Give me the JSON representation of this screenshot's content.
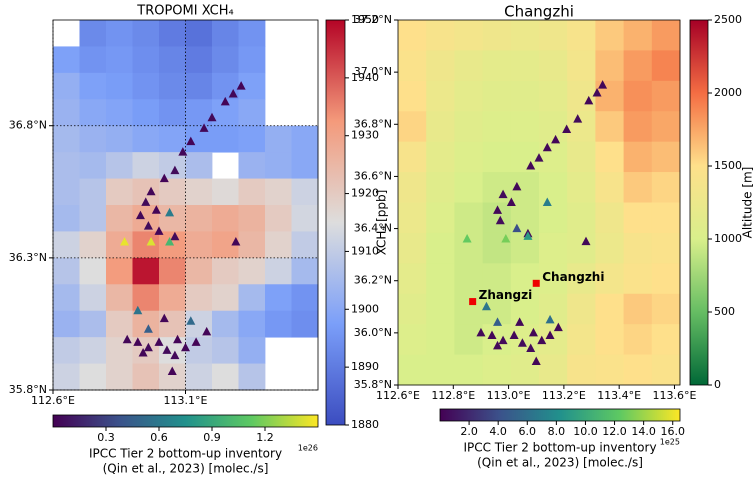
{
  "chart_data": [
    {
      "type": "heatmap",
      "title": "TROPOMI XCH₄",
      "xlim": [
        112.6,
        113.6
      ],
      "ylim": [
        35.8,
        37.2
      ],
      "xticks": [
        {
          "value": 112.6,
          "label": "112.6°E"
        },
        {
          "value": 113.1,
          "label": "113.1°E"
        }
      ],
      "yticks": [
        {
          "value": 35.8,
          "label": "35.8°N"
        },
        {
          "value": 36.3,
          "label": "36.3°N"
        },
        {
          "value": 36.8,
          "label": "36.8°N"
        }
      ],
      "grid": true,
      "cells": {
        "colormap": "coolwarm",
        "values": [
          [
            null,
            1893,
            1895,
            1893,
            1890,
            1888,
            1892,
            1895,
            null,
            null
          ],
          [
            1898,
            1895,
            1896,
            1894,
            1892,
            1890,
            1893,
            1896,
            null,
            null
          ],
          [
            1902,
            1898,
            1897,
            1895,
            1893,
            1892,
            1895,
            1898,
            null,
            null
          ],
          [
            1903,
            1900,
            1899,
            1897,
            1895,
            1896,
            1898,
            1900,
            null,
            null
          ],
          [
            1905,
            1903,
            1902,
            1900,
            1899,
            1897,
            1897,
            1898,
            1902,
            1900
          ],
          [
            1906,
            1905,
            1908,
            1912,
            1910,
            1906,
            null,
            1903,
            1902,
            1900
          ],
          [
            1906,
            1908,
            1920,
            1922,
            1920,
            1918,
            1916,
            1920,
            1918,
            1912
          ],
          [
            1905,
            1908,
            1925,
            1928,
            1925,
            1926,
            1928,
            1926,
            1920,
            1913
          ],
          [
            1912,
            1918,
            1928,
            1935,
            1932,
            1928,
            1930,
            1925,
            1918,
            1910
          ],
          [
            1908,
            1915,
            1932,
            1948,
            1935,
            1925,
            1920,
            1918,
            1912,
            1905
          ],
          [
            1905,
            1912,
            1925,
            1935,
            1928,
            1920,
            1918,
            1905,
            1898,
            1895
          ],
          [
            1903,
            1906,
            1920,
            1926,
            1922,
            1912,
            1905,
            1900,
            1896,
            1894
          ],
          [
            1910,
            1912,
            1918,
            1920,
            1915,
            1910,
            1908,
            1902,
            null,
            null
          ],
          [
            1912,
            1915,
            1918,
            1922,
            1918,
            1912,
            1915,
            1908,
            null,
            null
          ]
        ]
      },
      "colorbar": {
        "label": "XCH₄ [ppb]",
        "lim": [
          1880,
          1950
        ],
        "ticks": [
          1880,
          1890,
          1900,
          1910,
          1920,
          1930,
          1940,
          1950
        ]
      },
      "sources": {
        "colormap": "viridis",
        "lon": [
          113.31,
          113.28,
          113.25,
          113.2,
          113.17,
          113.12,
          113.09,
          113.06,
          113.02,
          112.97,
          112.95,
          112.99,
          112.93,
          113.04,
          112.96,
          113.0,
          113.06,
          112.87,
          112.97,
          113.04,
          113.29,
          112.92,
          113.12,
          112.96,
          112.88,
          112.92,
          112.96,
          113.0,
          113.03,
          113.07,
          113.1,
          113.14,
          112.94,
          113.06,
          113.05,
          113.02,
          113.18
        ],
        "lat": [
          36.95,
          36.92,
          36.89,
          36.83,
          36.79,
          36.74,
          36.7,
          36.63,
          36.6,
          36.55,
          36.51,
          36.48,
          36.46,
          36.47,
          36.42,
          36.4,
          36.38,
          36.36,
          36.36,
          36.36,
          36.36,
          36.1,
          36.06,
          36.03,
          35.99,
          35.98,
          35.96,
          35.98,
          35.95,
          35.99,
          35.96,
          35.98,
          35.94,
          35.93,
          35.87,
          36.07,
          36.02
        ],
        "values": [
          0.02,
          0.03,
          0.02,
          0.04,
          0.03,
          0.02,
          0.03,
          0.05,
          0.02,
          0.03,
          0.04,
          0.02,
          0.03,
          0.62,
          0.05,
          0.03,
          0.04,
          1.45,
          1.42,
          1.0,
          0.03,
          0.58,
          0.52,
          0.45,
          0.03,
          0.02,
          0.04,
          0.03,
          0.05,
          0.02,
          0.03,
          0.02,
          0.03,
          0.04,
          0.02,
          0.03,
          0.02
        ]
      },
      "sources_colorbar": {
        "label_lines": [
          "IPCC Tier 2 bottom-up inventory",
          "(Qin et al., 2023) [molec./s]"
        ],
        "lim": [
          0,
          1.5
        ],
        "ticks": [
          0.3,
          0.6,
          0.9,
          1.2
        ],
        "offset": "1e26"
      }
    },
    {
      "type": "heatmap",
      "title": "Changzhi",
      "xlim": [
        112.6,
        113.62
      ],
      "ylim": [
        35.8,
        37.2
      ],
      "xticks": [
        {
          "value": 112.6,
          "label": "112.6°E"
        },
        {
          "value": 112.8,
          "label": "112.8°E"
        },
        {
          "value": 113.0,
          "label": "113.0°E"
        },
        {
          "value": 113.2,
          "label": "113.2°E"
        },
        {
          "value": 113.4,
          "label": "113.4°E"
        },
        {
          "value": 113.6,
          "label": "113.6°E"
        }
      ],
      "yticks": [
        {
          "value": 35.8,
          "label": "35.8°N"
        },
        {
          "value": 36.0,
          "label": "36.0°N"
        },
        {
          "value": 36.2,
          "label": "36.2°N"
        },
        {
          "value": 36.4,
          "label": "36.4°N"
        },
        {
          "value": 36.6,
          "label": "36.6°N"
        },
        {
          "value": 36.8,
          "label": "36.8°N"
        },
        {
          "value": 37.0,
          "label": "37.0°N"
        },
        {
          "value": 37.2,
          "label": "37.2°N"
        }
      ],
      "grid": false,
      "cells": {
        "colormap": "RdYlGn_r",
        "values": [
          [
            1500,
            1400,
            1350,
            1300,
            1250,
            1300,
            1400,
            1600,
            1700,
            1800
          ],
          [
            1450,
            1300,
            1200,
            1150,
            1150,
            1200,
            1350,
            1650,
            1800,
            1900
          ],
          [
            1500,
            1250,
            1150,
            1100,
            1100,
            1150,
            1300,
            1700,
            1850,
            1800
          ],
          [
            1550,
            1200,
            1100,
            1050,
            1050,
            1100,
            1250,
            1600,
            1800,
            1750
          ],
          [
            1400,
            1150,
            1050,
            1000,
            1000,
            1050,
            1200,
            1500,
            1700,
            1650
          ],
          [
            1300,
            1100,
            1000,
            950,
            950,
            1000,
            1150,
            1400,
            1600,
            1550
          ],
          [
            1250,
            1050,
            950,
            900,
            950,
            1000,
            1100,
            1300,
            1500,
            1500
          ],
          [
            1200,
            1000,
            950,
            900,
            950,
            1050,
            1100,
            1250,
            1400,
            1450
          ],
          [
            1150,
            1000,
            950,
            950,
            1000,
            1050,
            1200,
            1350,
            1450,
            1500
          ],
          [
            1100,
            1000,
            950,
            950,
            1000,
            1100,
            1300,
            1500,
            1600,
            1550
          ],
          [
            1050,
            1000,
            950,
            1000,
            1050,
            1150,
            1350,
            1500,
            1550,
            1500
          ],
          [
            1000,
            1000,
            1000,
            1050,
            1100,
            1200,
            1400,
            1450,
            1500,
            1450
          ]
        ]
      },
      "colorbar": {
        "label": "Altitude [m]",
        "lim": [
          0,
          2500
        ],
        "ticks": [
          0,
          500,
          1000,
          1500,
          2000,
          2500
        ]
      },
      "sources": {
        "colormap": "viridis",
        "lon": [
          113.34,
          113.32,
          113.29,
          113.25,
          113.21,
          113.17,
          113.14,
          113.11,
          113.08,
          113.03,
          112.98,
          113.01,
          112.96,
          113.14,
          112.97,
          113.03,
          113.07,
          112.85,
          112.99,
          113.07,
          113.28,
          112.92,
          113.15,
          112.96,
          112.9,
          112.94,
          112.98,
          113.02,
          113.05,
          113.09,
          113.12,
          113.15,
          112.96,
          113.08,
          113.1,
          113.04,
          113.18
        ],
        "lat": [
          36.95,
          36.92,
          36.89,
          36.82,
          36.78,
          36.74,
          36.71,
          36.67,
          36.64,
          36.56,
          36.53,
          36.5,
          36.47,
          36.5,
          36.43,
          36.4,
          36.38,
          36.36,
          36.36,
          36.37,
          36.35,
          36.1,
          36.05,
          36.04,
          36.0,
          35.99,
          35.97,
          35.99,
          35.96,
          36.0,
          35.97,
          35.99,
          35.95,
          35.94,
          35.89,
          36.04,
          36.02
        ],
        "values": [
          0.3,
          0.4,
          0.3,
          0.5,
          0.4,
          0.3,
          0.4,
          0.6,
          0.3,
          0.4,
          0.5,
          0.3,
          0.4,
          7.0,
          0.6,
          4.0,
          0.5,
          12.5,
          13.0,
          9.0,
          0.4,
          6.5,
          6.0,
          5.0,
          0.4,
          0.3,
          0.5,
          0.4,
          0.6,
          0.3,
          0.4,
          0.3,
          0.4,
          0.5,
          0.3,
          0.4,
          0.3
        ]
      },
      "sources_colorbar": {
        "label_lines": [
          "IPCC Tier 2 bottom-up inventory",
          "(Qin et al., 2023) [molec./s]"
        ],
        "lim": [
          0,
          16.5
        ],
        "ticks": [
          {
            "value": 2,
            "label": "2.0"
          },
          {
            "value": 4,
            "label": "4.0"
          },
          {
            "value": 6,
            "label": "6.0"
          },
          {
            "value": 8,
            "label": "8.0"
          },
          {
            "value": 10,
            "label": "10.0"
          },
          {
            "value": 12,
            "label": "12.0"
          },
          {
            "value": 14,
            "label": "14.0"
          },
          {
            "value": 16,
            "label": "16.0"
          }
        ],
        "offset": "1e25"
      },
      "cities": {
        "names": [
          "Changzhi",
          "Zhangzi"
        ],
        "lon": [
          113.1,
          112.87
        ],
        "lat": [
          36.19,
          36.12
        ],
        "color": "#ee0000"
      }
    }
  ]
}
